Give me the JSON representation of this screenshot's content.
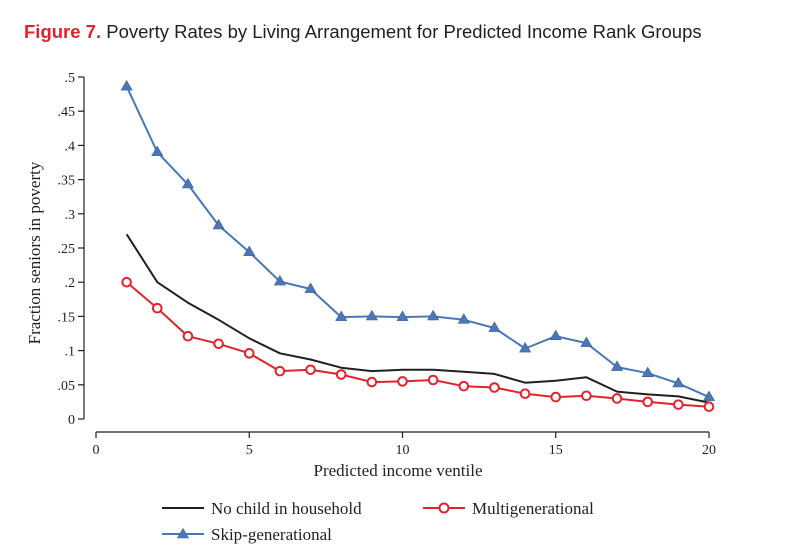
{
  "figure": {
    "number": "Figure 7.",
    "caption": "Poverty Rates by Living Arrangement for Predicted Income Rank Groups"
  },
  "chart_data": {
    "type": "line",
    "xlabel": "Predicted income ventile",
    "ylabel": "Fraction seniors in poverty",
    "xlim": [
      0,
      20
    ],
    "ylim": [
      0,
      0.5
    ],
    "x_ticks": [
      0,
      5,
      10,
      15,
      20
    ],
    "x_tick_labels": [
      "0",
      "5",
      "10",
      "15",
      "20"
    ],
    "y_ticks": [
      0,
      0.05,
      0.1,
      0.15,
      0.2,
      0.25,
      0.3,
      0.35,
      0.4,
      0.45,
      0.5
    ],
    "y_tick_labels": [
      "0",
      ".05",
      ".1",
      ".15",
      ".2",
      ".25",
      ".3",
      ".35",
      ".4",
      ".45",
      ".5"
    ],
    "grid": false,
    "legend_position": "bottom",
    "x": [
      1,
      2,
      3,
      4,
      5,
      6,
      7,
      8,
      9,
      10,
      11,
      12,
      13,
      14,
      15,
      16,
      17,
      18,
      19,
      20
    ],
    "series": [
      {
        "name": "No child in household",
        "color": "#231f20",
        "marker": "none",
        "values": [
          0.27,
          0.2,
          0.17,
          0.145,
          0.118,
          0.096,
          0.087,
          0.075,
          0.07,
          0.072,
          0.072,
          0.069,
          0.066,
          0.053,
          0.056,
          0.061,
          0.04,
          0.036,
          0.033,
          0.024
        ]
      },
      {
        "name": "Multigenerational",
        "color": "#e0232e",
        "marker": "circle",
        "values": [
          0.2,
          0.162,
          0.121,
          0.11,
          0.096,
          0.07,
          0.072,
          0.065,
          0.054,
          0.055,
          0.057,
          0.048,
          0.046,
          0.037,
          0.032,
          0.034,
          0.03,
          0.025,
          0.021,
          0.018
        ]
      },
      {
        "name": "Skip-generational",
        "color": "#4a78b6",
        "marker": "triangle",
        "values": [
          0.486,
          0.39,
          0.343,
          0.283,
          0.244,
          0.201,
          0.19,
          0.149,
          0.15,
          0.149,
          0.15,
          0.145,
          0.133,
          0.103,
          0.121,
          0.111,
          0.076,
          0.067,
          0.052,
          0.032
        ]
      }
    ]
  }
}
